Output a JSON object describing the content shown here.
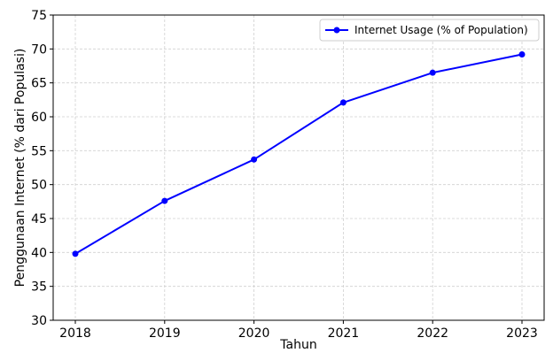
{
  "chart_data": {
    "type": "line",
    "title": "",
    "xlabel": "Tahun",
    "ylabel": "Penggunaan Internet (% dari Populasi)",
    "x": [
      2018,
      2019,
      2020,
      2021,
      2022,
      2023
    ],
    "x_tick_labels": [
      "2018",
      "2019",
      "2020",
      "2021",
      "2022",
      "2023"
    ],
    "y_tick_labels": [
      "30",
      "35",
      "40",
      "45",
      "50",
      "55",
      "60",
      "65",
      "70",
      "75"
    ],
    "y_ticks": [
      30,
      35,
      40,
      45,
      50,
      55,
      60,
      65,
      70,
      75
    ],
    "ylim": [
      30,
      75
    ],
    "grid": true,
    "legend_position": "top-right",
    "series": [
      {
        "name": "Internet Usage (% of Population)",
        "color": "#0000ff",
        "marker": "circle",
        "values": [
          39.8,
          47.6,
          53.7,
          62.1,
          66.5,
          69.2
        ]
      }
    ]
  }
}
